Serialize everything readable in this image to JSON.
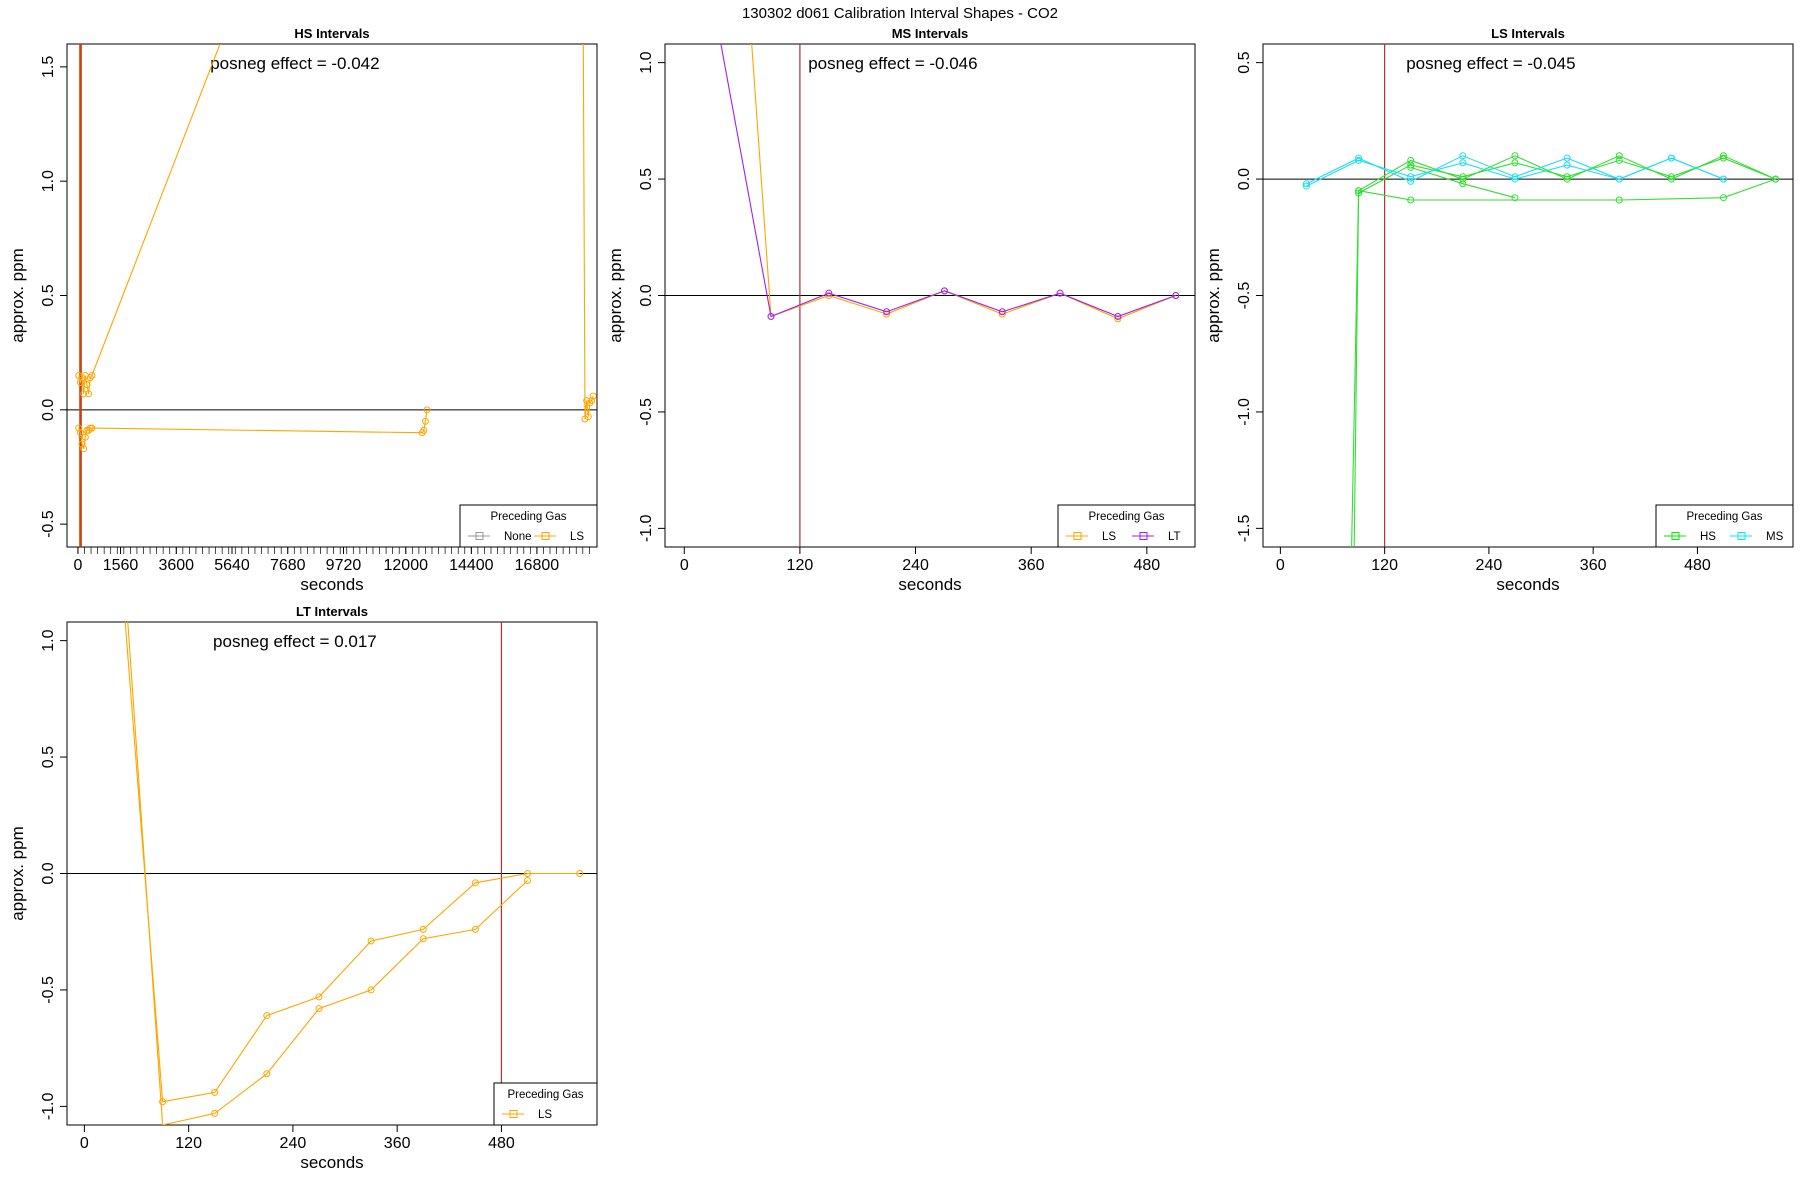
{
  "page_title": "130302  d061   Calibration Interval Shapes - CO2",
  "chart_data": [
    {
      "type": "line",
      "title": "HS Intervals",
      "xlabel": "seconds",
      "ylabel": "approx. ppm",
      "annotation": "posneg effect = -0.042",
      "xlim": [
        -400,
        19000
      ],
      "ylim": [
        -0.6,
        1.6
      ],
      "x_ticks": [
        0,
        1560,
        3600,
        5640,
        7680,
        9720,
        12000,
        14400,
        16800
      ],
      "y_ticks": [
        -0.5,
        0.0,
        0.5,
        1.0,
        1.5
      ],
      "y_tick_labels": [
        "-0.5",
        "0.0",
        "0.5",
        "1.0",
        "1.5"
      ],
      "vline": 120,
      "hline": 0,
      "legend": {
        "title": "Preceding Gas",
        "position": "bottom-right",
        "entries": [
          {
            "name": "None",
            "color": "#999999"
          },
          {
            "name": "LS",
            "color": "#FFA500"
          }
        ]
      },
      "series": [
        {
          "name": "None",
          "color": "#999999",
          "x": [],
          "y": []
        },
        {
          "name": "LS",
          "color": "#FFA500",
          "x": [
            30,
            90,
            150,
            210,
            270,
            330,
            390,
            450,
            510,
            12600,
            12660,
            12720,
            12780
          ],
          "y": [
            -0.08,
            -0.1,
            -0.15,
            -0.17,
            -0.12,
            -0.09,
            -0.09,
            -0.08,
            -0.08,
            -0.1,
            -0.09,
            -0.05,
            0.0
          ]
        },
        {
          "name": "LS",
          "color": "#FFA500",
          "x": [
            30,
            90,
            150,
            210,
            270,
            330,
            390,
            450,
            510,
            5200
          ],
          "y": [
            0.15,
            0.12,
            0.14,
            0.07,
            0.15,
            0.11,
            0.07,
            0.14,
            0.15,
            1.6
          ]
        },
        {
          "name": "LS",
          "color": "#FFA500",
          "x": [
            18500,
            18560,
            18620,
            18680,
            18740,
            18800,
            18860
          ],
          "y": [
            1.6,
            -0.04,
            0.04,
            -0.03,
            0.03,
            0.04,
            0.06
          ]
        }
      ],
      "extra_vlines": [
        {
          "x": 120,
          "color": "#CC4400"
        }
      ]
    },
    {
      "type": "line",
      "title": "MS Intervals",
      "xlabel": "seconds",
      "ylabel": "approx. ppm",
      "annotation": "posneg effect = -0.046",
      "xlim": [
        -20,
        530
      ],
      "ylim": [
        -1.08,
        1.08
      ],
      "x_ticks": [
        0,
        120,
        240,
        360,
        480
      ],
      "y_ticks": [
        -1.0,
        -0.5,
        0.0,
        0.5,
        1.0
      ],
      "y_tick_labels": [
        "-1.0",
        "-0.5",
        "0.0",
        "0.5",
        "1.0"
      ],
      "vline": 120,
      "hline": 0,
      "legend": {
        "title": "Preceding Gas",
        "position": "bottom-right",
        "entries": [
          {
            "name": "LS",
            "color": "#FFA500"
          },
          {
            "name": "LT",
            "color": "#A020F0"
          }
        ]
      },
      "series": [
        {
          "name": "LS",
          "color": "#FFA500",
          "x": [
            70,
            90,
            150,
            210,
            270,
            330,
            390,
            450,
            510
          ],
          "y": [
            1.08,
            -0.09,
            0.0,
            -0.08,
            0.02,
            -0.08,
            0.01,
            -0.1,
            0.0
          ]
        },
        {
          "name": "LT",
          "color": "#A020F0",
          "x": [
            38,
            90,
            150,
            210,
            270,
            330,
            390,
            450,
            510
          ],
          "y": [
            1.08,
            -0.09,
            0.01,
            -0.07,
            0.02,
            -0.07,
            0.01,
            -0.09,
            0.0
          ]
        }
      ]
    },
    {
      "type": "line",
      "title": "LS Intervals",
      "xlabel": "seconds",
      "ylabel": "approx. ppm",
      "annotation": "posneg effect = -0.045",
      "xlim": [
        -20,
        590
      ],
      "ylim": [
        -1.58,
        0.58
      ],
      "x_ticks": [
        0,
        120,
        240,
        360,
        480
      ],
      "y_ticks": [
        -1.5,
        -1.0,
        -0.5,
        0.0,
        0.5
      ],
      "y_tick_labels": [
        "-1.5",
        "-1.0",
        "-0.5",
        "0.0",
        "0.5"
      ],
      "vline": 120,
      "hline": 0,
      "legend": {
        "title": "Preceding Gas",
        "position": "bottom-right",
        "entries": [
          {
            "name": "HS",
            "color": "#00EE00"
          },
          {
            "name": "MS",
            "color": "#00EEEE"
          }
        ]
      },
      "series": [
        {
          "name": "HS",
          "color": "#33DD33",
          "x": [
            82,
            90,
            150,
            210,
            270,
            330,
            390,
            450,
            510,
            570
          ],
          "y": [
            -1.58,
            -0.05,
            0.08,
            0.0,
            0.1,
            0.0,
            0.1,
            0.0,
            0.1,
            0.0
          ]
        },
        {
          "name": "HS",
          "color": "#33DD33",
          "x": [
            85,
            90,
            150,
            210,
            270,
            330,
            390,
            450,
            510,
            570
          ],
          "y": [
            -1.58,
            -0.06,
            0.06,
            0.01,
            0.07,
            0.01,
            0.08,
            0.01,
            0.09,
            0.0
          ]
        },
        {
          "name": "HS",
          "color": "#33DD33",
          "x": [
            90,
            150,
            390,
            510,
            570
          ],
          "y": [
            -0.05,
            -0.09,
            -0.09,
            -0.08,
            0.0
          ]
        },
        {
          "name": "HS",
          "color": "#33DD33",
          "x": [
            150,
            210,
            270
          ],
          "y": [
            0.05,
            -0.02,
            -0.08
          ]
        },
        {
          "name": "MS",
          "color": "#22DDEE",
          "x": [
            30,
            90,
            150,
            210,
            270,
            330,
            390,
            450,
            510
          ],
          "y": [
            -0.02,
            0.09,
            -0.01,
            0.1,
            0.01,
            0.09,
            0.0,
            0.09,
            0.0
          ]
        },
        {
          "name": "MS",
          "color": "#22DDEE",
          "x": [
            30,
            90,
            150,
            210,
            270,
            330,
            390,
            450,
            510
          ],
          "y": [
            -0.03,
            0.08,
            0.01,
            0.07,
            0.0,
            0.06,
            0.0,
            0.09,
            0.0
          ]
        }
      ]
    },
    {
      "type": "line",
      "title": "LT Intervals",
      "xlabel": "seconds",
      "ylabel": "approx. ppm",
      "annotation": "posneg effect = 0.017",
      "xlim": [
        -20,
        590
      ],
      "ylim": [
        -1.08,
        1.08
      ],
      "x_ticks": [
        0,
        120,
        240,
        360,
        480
      ],
      "y_ticks": [
        -1.0,
        -0.5,
        0.0,
        0.5,
        1.0
      ],
      "y_tick_labels": [
        "-1.0",
        "-0.5",
        "0.0",
        "0.5",
        "1.0"
      ],
      "vline": 480,
      "hline": 0,
      "legend": {
        "title": "Preceding Gas",
        "position": "bottom-right",
        "entries": [
          {
            "name": "LS",
            "color": "#FFA500"
          }
        ]
      },
      "series": [
        {
          "name": "LS",
          "color": "#FFA500",
          "x": [
            47,
            90,
            150,
            210,
            270,
            330,
            390,
            450,
            510,
            570
          ],
          "y": [
            1.08,
            -0.98,
            -0.94,
            -0.61,
            -0.53,
            -0.29,
            -0.24,
            -0.04,
            0.0,
            0.0
          ]
        },
        {
          "name": "LS",
          "color": "#FFA500",
          "x": [
            50,
            90,
            150,
            210,
            270,
            330,
            390,
            450,
            510
          ],
          "y": [
            1.08,
            -1.08,
            -1.03,
            -0.86,
            -0.58,
            -0.5,
            -0.28,
            -0.24,
            -0.03
          ]
        }
      ]
    }
  ]
}
